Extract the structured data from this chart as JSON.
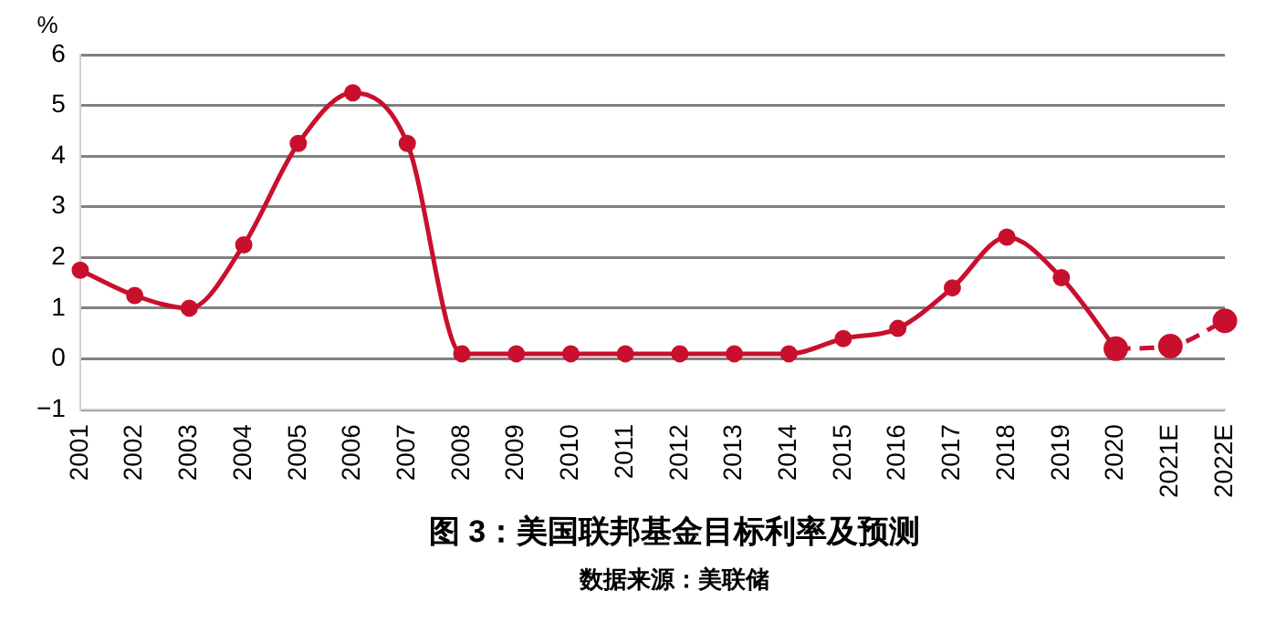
{
  "chart_data": {
    "type": "line",
    "title": "图 3：美国联邦基金目标利率及预测",
    "ylabel": "%",
    "annotations": [
      "数据来源：美联储"
    ],
    "categories": [
      "2001",
      "2002",
      "2003",
      "2004",
      "2005",
      "2006",
      "2007",
      "2008",
      "2009",
      "2010",
      "2011",
      "2012",
      "2013",
      "2014",
      "2015",
      "2016",
      "2017",
      "2018",
      "2019",
      "2020",
      "2021E",
      "2022E"
    ],
    "series": [
      {
        "color": "#c8102e",
        "line_style": "solid",
        "values": [
          1.75,
          1.25,
          1.0,
          2.25,
          4.25,
          5.25,
          4.25,
          0.1,
          0.1,
          0.1,
          0.1,
          0.1,
          0.1,
          0.1,
          0.4,
          0.6,
          1.4,
          2.4,
          1.6,
          0.2,
          null,
          null
        ]
      },
      {
        "color": "#c8102e",
        "line_style": "dashed",
        "values": [
          null,
          null,
          null,
          null,
          null,
          null,
          null,
          null,
          null,
          null,
          null,
          null,
          null,
          null,
          null,
          null,
          null,
          null,
          null,
          0.2,
          0.25,
          0.75
        ]
      }
    ],
    "ylim": [
      -1,
      6
    ],
    "yticks": [
      -1,
      0,
      1,
      2,
      3,
      4,
      5,
      6
    ],
    "grid": "y",
    "legend": false,
    "marker": "circle"
  }
}
